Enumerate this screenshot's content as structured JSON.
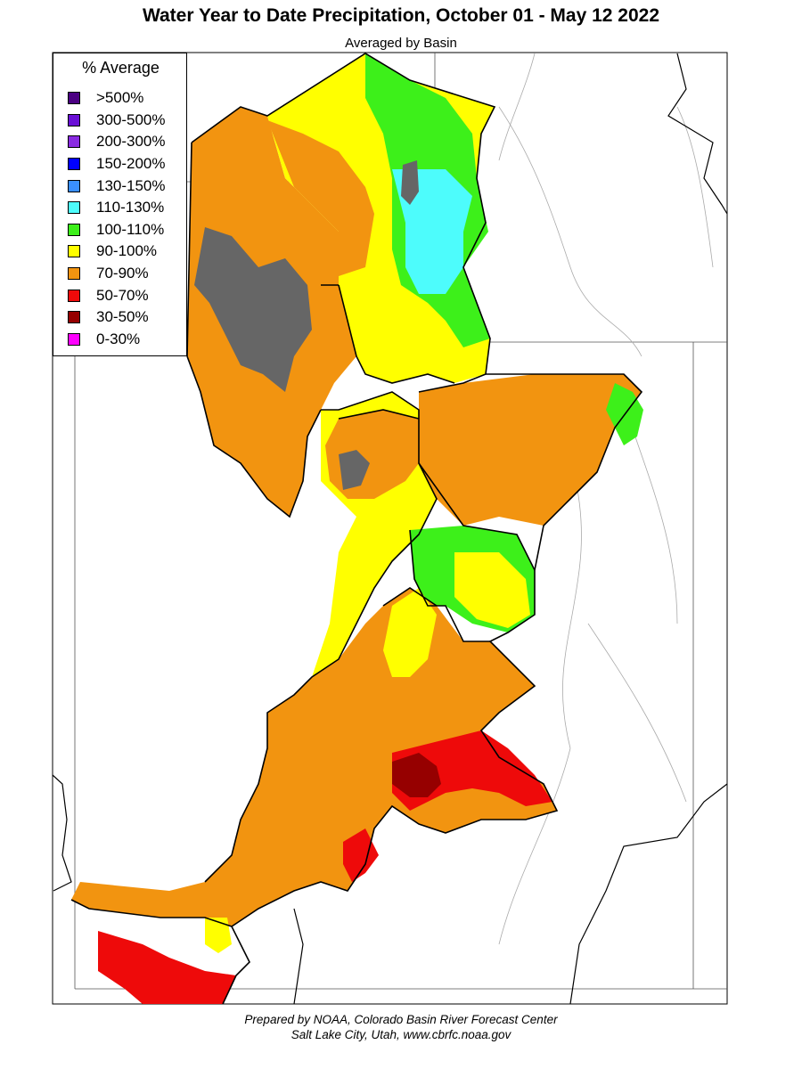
{
  "title": "Water Year to Date Precipitation, October 01  - May 12 2022",
  "subtitle": "Averaged by Basin",
  "legend": {
    "title": "% Average",
    "items": [
      {
        "label": ">500%",
        "color": "#4b0082"
      },
      {
        "label": "300-500%",
        "color": "#6a0fd6"
      },
      {
        "label": "200-300%",
        "color": "#8a2be2"
      },
      {
        "label": "150-200%",
        "color": "#0000ff"
      },
      {
        "label": "130-150%",
        "color": "#3a8fff"
      },
      {
        "label": "110-130%",
        "color": "#4dfcfc"
      },
      {
        "label": "100-110%",
        "color": "#3df01a"
      },
      {
        "label": "90-100%",
        "color": "#ffff00"
      },
      {
        "label": "70-90%",
        "color": "#f29410"
      },
      {
        "label": "50-70%",
        "color": "#ee0a0a"
      },
      {
        "label": "30-50%",
        "color": "#960000"
      },
      {
        "label": "0-30%",
        "color": "#ff00ff"
      }
    ]
  },
  "map_colors": {
    "no_data": "#666666",
    "boundary": "#000000",
    "state_line": "#555555",
    "rivers": "#aaaaaa"
  },
  "footer": {
    "line1": "Prepared by NOAA, Colorado Basin River Forecast Center",
    "line2": "Salt Lake City, Utah, www.cbrfc.noaa.gov"
  }
}
